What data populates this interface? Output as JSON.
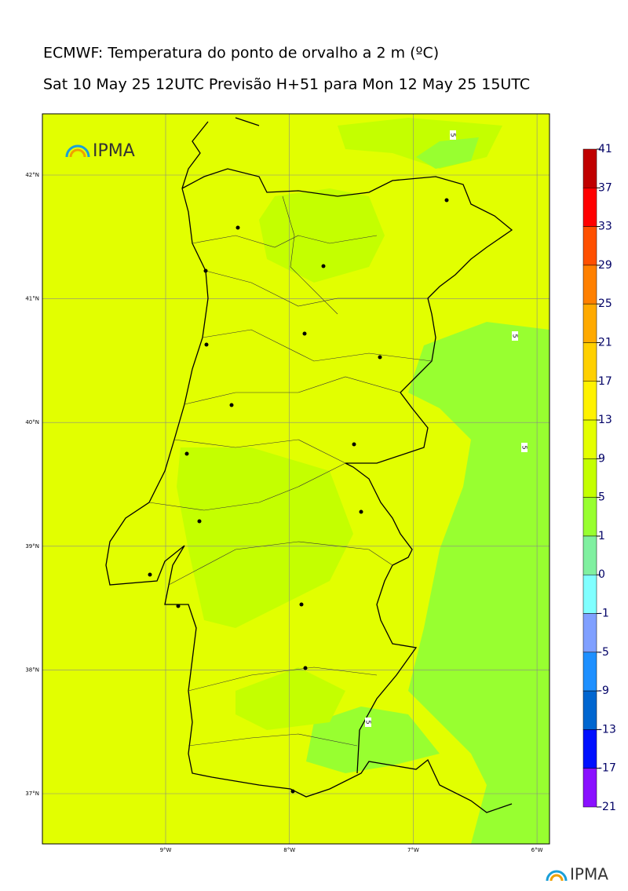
{
  "header": {
    "title": "ECMWF: Temperatura do ponto de orvalho a 2 m (ºC)",
    "subtitle": "Sat 10 May 25 12UTC Previsão H+51 para Mon 12 May 25 15UTC"
  },
  "map": {
    "logo": "IPMA",
    "latitudes": [
      {
        "value": 42,
        "label": "42°N"
      },
      {
        "value": 41,
        "label": "41°N"
      },
      {
        "value": 40,
        "label": "40°N"
      },
      {
        "value": 39,
        "label": "39°N"
      },
      {
        "value": 38,
        "label": "38°N"
      },
      {
        "value": 37,
        "label": "37°N"
      }
    ],
    "longitudes": [
      {
        "value": -9,
        "label": "9°W"
      },
      {
        "value": -8,
        "label": "8°W"
      },
      {
        "value": -7,
        "label": "7°W"
      },
      {
        "value": -6,
        "label": "6°W"
      }
    ],
    "contour_labels": [
      "5",
      "5",
      "5",
      "5"
    ]
  },
  "colorbar": {
    "ticks": [
      41,
      37,
      33,
      29,
      25,
      21,
      17,
      13,
      9,
      5,
      1,
      0,
      -1,
      -5,
      -9,
      -13,
      -17,
      -21
    ],
    "colors": [
      "#c00000",
      "#ff0000",
      "#ff5000",
      "#ff8000",
      "#ffaa00",
      "#ffd000",
      "#fff200",
      "#e4ff00",
      "#c4ff00",
      "#98ff30",
      "#80f0a0",
      "#80ffff",
      "#80a0ff",
      "#1e90ff",
      "#0066d0",
      "#0010ff",
      "#8a10ff"
    ]
  },
  "footer": {
    "logo": "IPMA"
  }
}
